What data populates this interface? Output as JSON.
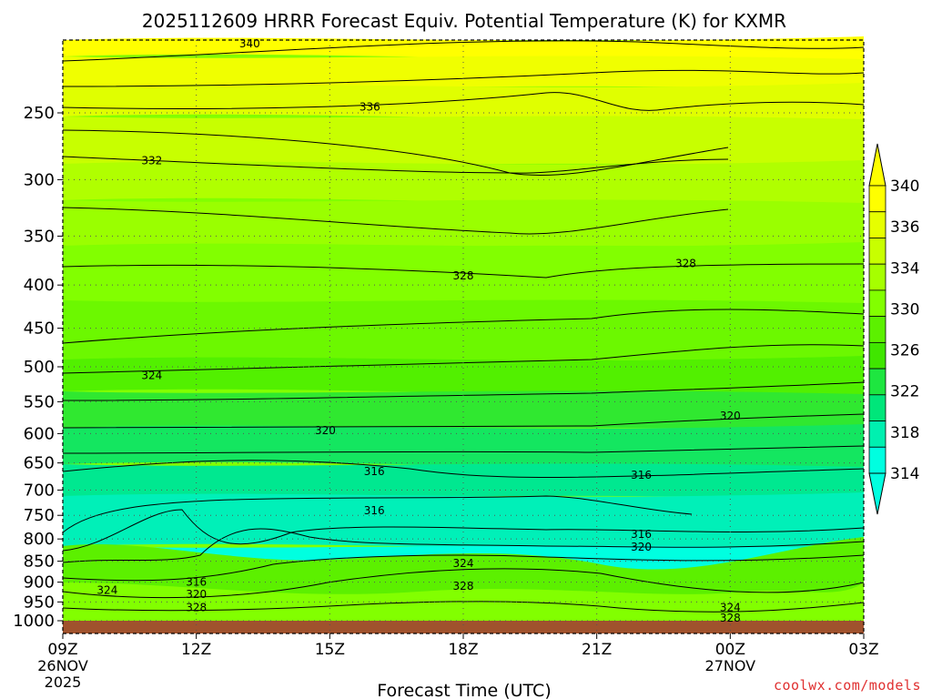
{
  "title": "2025112609 HRRR Forecast Equiv. Potential Temperature (K) for KXMR",
  "credit": "coolwx.com/models",
  "chart_data": {
    "type": "contour",
    "title": "2025112609 HRRR Forecast Equiv. Potential Temperature (K) for KXMR",
    "xlabel": "Forecast Time (UTC)",
    "ylabel": "",
    "x_ticks": [
      {
        "label": "09Z",
        "sub1": "26NOV",
        "sub2": "2025",
        "hour": 0
      },
      {
        "label": "12Z",
        "sub1": "",
        "sub2": "",
        "hour": 3
      },
      {
        "label": "15Z",
        "sub1": "",
        "sub2": "",
        "hour": 6
      },
      {
        "label": "18Z",
        "sub1": "",
        "sub2": "",
        "hour": 9
      },
      {
        "label": "21Z",
        "sub1": "",
        "sub2": "",
        "hour": 12
      },
      {
        "label": "00Z",
        "sub1": "27NOV",
        "sub2": "",
        "hour": 15
      },
      {
        "label": "03Z",
        "sub1": "",
        "sub2": "",
        "hour": 18
      }
    ],
    "y_ticks": [
      250,
      300,
      350,
      400,
      450,
      500,
      550,
      600,
      650,
      700,
      750,
      800,
      850,
      900,
      950,
      1000
    ],
    "y_scale": "log-pressure (hPa), inverted",
    "colorbar": {
      "labels": [
        340,
        336,
        334,
        330,
        326,
        322,
        318,
        314
      ],
      "colors": [
        "#ffff00",
        "#e6ff00",
        "#c8ff00",
        "#a6ff00",
        "#82ff00",
        "#5cf000",
        "#40e600",
        "#1ee640",
        "#00e67a",
        "#00f0b0",
        "#00ffe0"
      ]
    },
    "contour_labels": [
      {
        "value": "340",
        "hour": 4.2,
        "p": 207
      },
      {
        "value": "336",
        "hour": 6.9,
        "p": 246
      },
      {
        "value": "332",
        "hour": 2.0,
        "p": 285
      },
      {
        "value": "328",
        "hour": 9.0,
        "p": 390
      },
      {
        "value": "328",
        "hour": 14.0,
        "p": 377
      },
      {
        "value": "324",
        "hour": 2.0,
        "p": 512
      },
      {
        "value": "320",
        "hour": 5.9,
        "p": 595
      },
      {
        "value": "320",
        "hour": 15.0,
        "p": 572
      },
      {
        "value": "316",
        "hour": 7.0,
        "p": 665
      },
      {
        "value": "316",
        "hour": 13.0,
        "p": 672
      },
      {
        "value": "316",
        "hour": 7.0,
        "p": 740
      },
      {
        "value": "316",
        "hour": 13.0,
        "p": 790
      },
      {
        "value": "320",
        "hour": 13.0,
        "p": 818
      },
      {
        "value": "324",
        "hour": 9.0,
        "p": 855
      },
      {
        "value": "328",
        "hour": 9.0,
        "p": 910
      },
      {
        "value": "324",
        "hour": 1.0,
        "p": 920
      },
      {
        "value": "316",
        "hour": 3.0,
        "p": 900
      },
      {
        "value": "320",
        "hour": 3.0,
        "p": 930
      },
      {
        "value": "328",
        "hour": 3.0,
        "p": 965
      },
      {
        "value": "324",
        "hour": 15.0,
        "p": 965
      },
      {
        "value": "328",
        "hour": 15.0,
        "p": 992
      }
    ]
  }
}
